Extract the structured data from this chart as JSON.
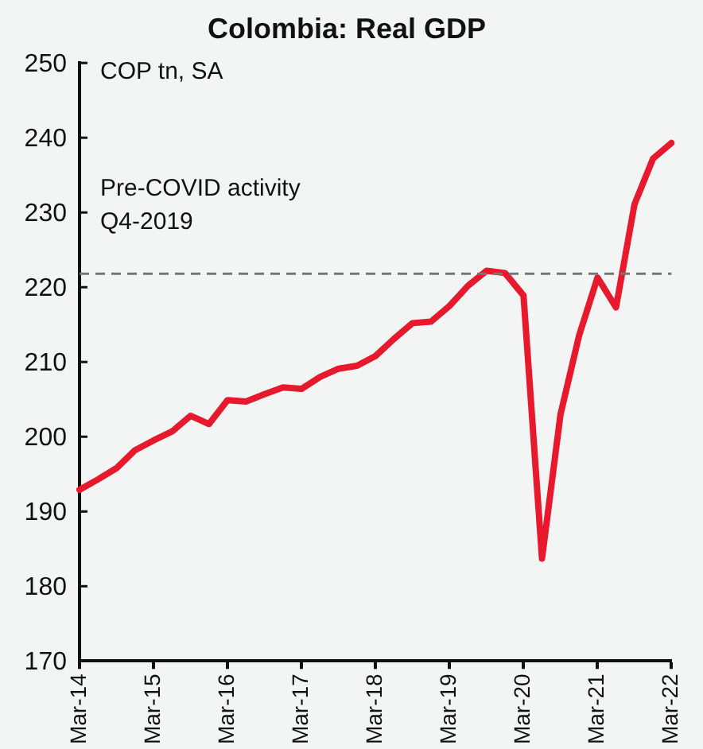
{
  "chart_data": {
    "type": "line",
    "title": "Colombia: Real GDP",
    "ylabel": "COP tn, SA",
    "categories": [
      "Mar-14",
      null,
      null,
      null,
      "Mar-15",
      null,
      null,
      null,
      "Mar-16",
      null,
      null,
      null,
      "Mar-17",
      null,
      null,
      null,
      "Mar-18",
      null,
      null,
      null,
      "Mar-19",
      null,
      null,
      null,
      "Mar-20",
      null,
      null,
      null,
      "Mar-21",
      null,
      null,
      null,
      "Mar-22"
    ],
    "series": [
      {
        "color": "#e8192c",
        "values": [
          192.9,
          194.3,
          195.8,
          198.2,
          199.5,
          200.7,
          202.8,
          201.7,
          204.9,
          204.7,
          205.7,
          206.6,
          206.4,
          208.0,
          209.1,
          209.5,
          210.8,
          213.1,
          215.2,
          215.4,
          217.5,
          220.2,
          222.2,
          221.9,
          218.9,
          183.7,
          203.0,
          213.5,
          221.3,
          217.3,
          231.1,
          237.2,
          239.3
        ]
      }
    ],
    "ylim": [
      170,
      250
    ],
    "yticks": [
      170,
      180,
      190,
      200,
      210,
      220,
      230,
      240,
      250
    ],
    "ref_lines": [
      {
        "axis": "y",
        "value": 221.8,
        "label": "Pre-COVID activity\nQ4-2019",
        "color": "#777777",
        "line_style": "dashed"
      }
    ],
    "grid": false,
    "legend": false,
    "marker": "none",
    "line_style": "solid"
  }
}
